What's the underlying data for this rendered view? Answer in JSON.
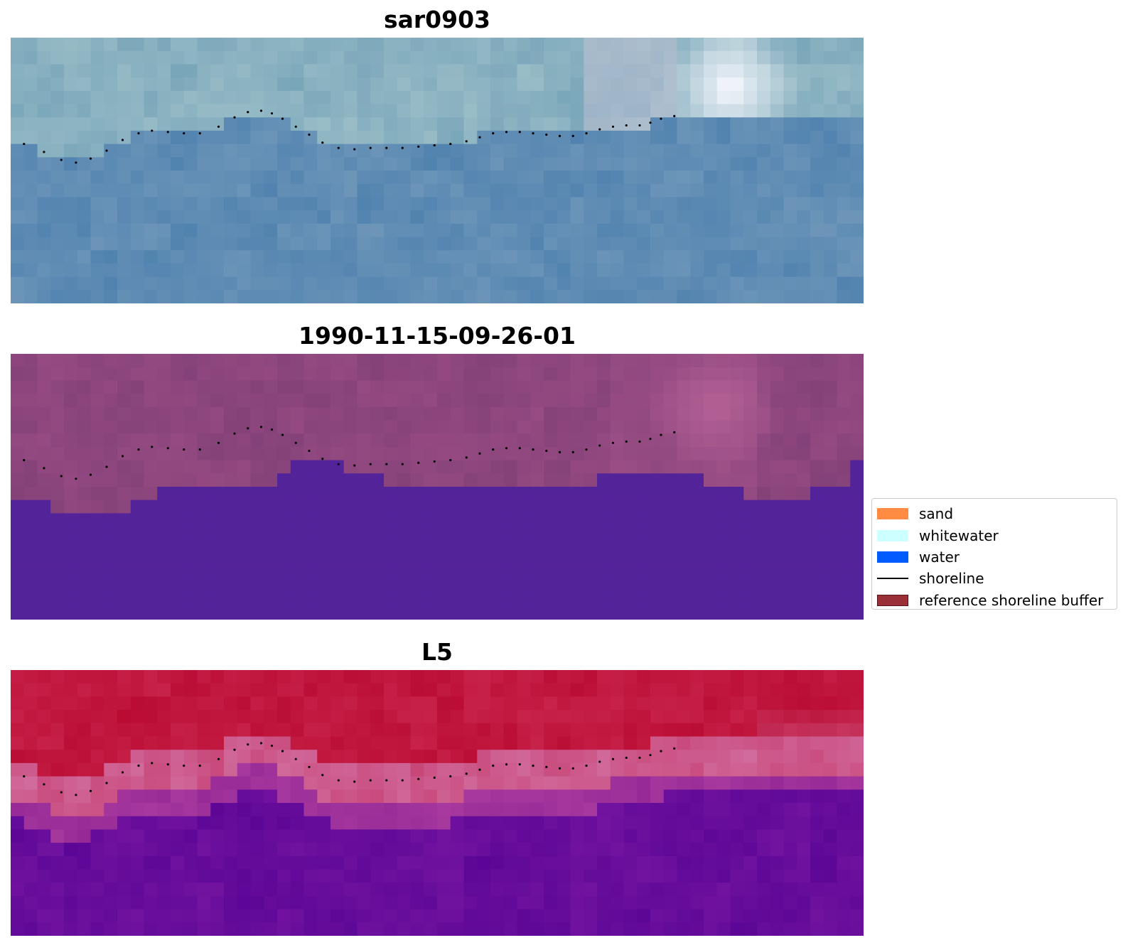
{
  "panels": [
    {
      "title": "sar0903",
      "colormap": "sar"
    },
    {
      "title": "1990-11-15-09-26-01",
      "colormap": "classified"
    },
    {
      "title": "L5",
      "colormap": "ndwi"
    }
  ],
  "legend": {
    "items": [
      {
        "label": "sand",
        "kind": "patch",
        "color": "#ff8c42"
      },
      {
        "label": "whitewater",
        "kind": "patch",
        "color": "#ccffff"
      },
      {
        "label": "water",
        "kind": "patch",
        "color": "#005cff"
      },
      {
        "label": "shoreline",
        "kind": "line",
        "color": "#000000"
      },
      {
        "label": "reference shoreline buffer",
        "kind": "patch",
        "color": "#9b2f37",
        "edge": "#5a1015"
      }
    ]
  },
  "shoreline_points": [
    [
      1.0,
      8.0
    ],
    [
      2.5,
      8.6
    ],
    [
      3.8,
      9.2
    ],
    [
      4.9,
      9.4
    ],
    [
      6.0,
      9.1
    ],
    [
      7.2,
      8.5
    ],
    [
      8.4,
      7.7
    ],
    [
      9.6,
      7.2
    ],
    [
      10.6,
      7.0
    ],
    [
      11.8,
      7.1
    ],
    [
      13.0,
      7.2
    ],
    [
      14.2,
      7.2
    ],
    [
      15.6,
      6.7
    ],
    [
      16.8,
      6.0
    ],
    [
      17.8,
      5.6
    ],
    [
      18.8,
      5.5
    ],
    [
      19.6,
      5.7
    ],
    [
      20.4,
      6.1
    ],
    [
      21.4,
      6.7
    ],
    [
      22.4,
      7.3
    ],
    [
      23.4,
      7.9
    ],
    [
      24.6,
      8.3
    ],
    [
      25.8,
      8.4
    ],
    [
      27.0,
      8.3
    ],
    [
      28.2,
      8.3
    ],
    [
      29.4,
      8.3
    ],
    [
      30.6,
      8.2
    ],
    [
      31.8,
      8.1
    ],
    [
      33.0,
      8.0
    ],
    [
      34.2,
      7.8
    ],
    [
      35.2,
      7.5
    ],
    [
      36.2,
      7.2
    ],
    [
      37.2,
      7.1
    ],
    [
      38.2,
      7.1
    ],
    [
      39.2,
      7.2
    ],
    [
      40.2,
      7.3
    ],
    [
      41.2,
      7.4
    ],
    [
      42.2,
      7.4
    ],
    [
      43.2,
      7.2
    ],
    [
      44.2,
      6.9
    ],
    [
      45.2,
      6.7
    ],
    [
      46.2,
      6.6
    ],
    [
      47.2,
      6.6
    ],
    [
      48.0,
      6.4
    ],
    [
      48.8,
      6.1
    ],
    [
      49.8,
      5.9
    ]
  ],
  "classified_boundary_rows": [
    11,
    11,
    11,
    12,
    12,
    12,
    12,
    12,
    12,
    11,
    11,
    10,
    10,
    10,
    10,
    10,
    10,
    10,
    10,
    10,
    9,
    8,
    8,
    8,
    8,
    9,
    9,
    9,
    10,
    10,
    10,
    10,
    10,
    10,
    10,
    10,
    10,
    10,
    10,
    10,
    10,
    10,
    10,
    10,
    9,
    9,
    9,
    9,
    9,
    9,
    9,
    9,
    10,
    10,
    10,
    11,
    11,
    11,
    11,
    11,
    10,
    10,
    10,
    8,
    8
  ]
}
